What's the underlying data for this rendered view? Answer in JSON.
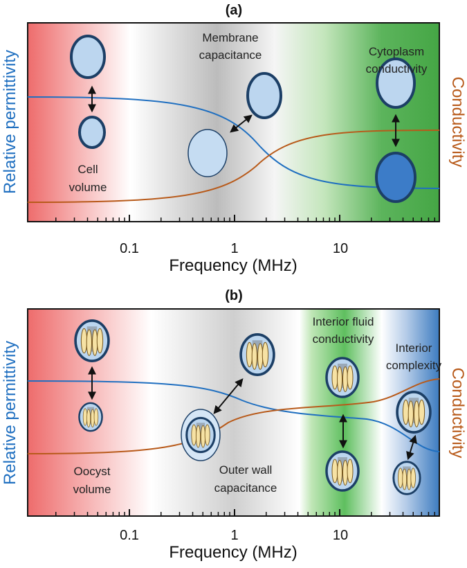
{
  "panels": [
    {
      "title": "(a)",
      "x_axis": {
        "label": "Frequency (MHz)",
        "ticks": [
          "0.1",
          "1",
          "10"
        ]
      },
      "y_axis_left": "Relative permittivity",
      "y_axis_right": "Conductivity",
      "annotations": [
        [
          "Membrane",
          "capacitance"
        ],
        [
          "Cytoplasm",
          "conductivity"
        ],
        [
          "Cell",
          "volume"
        ]
      ]
    },
    {
      "title": "(b)",
      "x_axis": {
        "label": "Frequency (MHz)",
        "ticks": [
          "0.1",
          "1",
          "10"
        ]
      },
      "y_axis_left": "Relative permittivity",
      "y_axis_right": "Conductivity",
      "annotations": [
        [
          "Interior fluid",
          "conductivity"
        ],
        [
          "Interior",
          "complexity"
        ],
        [
          "Oocyst",
          "volume"
        ],
        [
          "Outer wall",
          "capacitance"
        ]
      ]
    }
  ]
}
